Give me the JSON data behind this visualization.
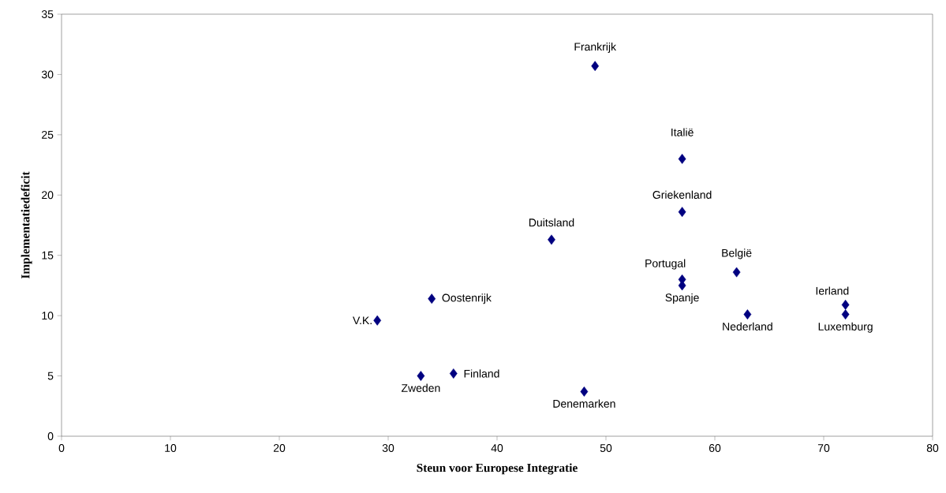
{
  "chart_data": {
    "type": "scatter",
    "xlabel": "Steun voor Europese Integratie",
    "ylabel": "Implementatiedeficit",
    "x": [
      49,
      57,
      57,
      45,
      57,
      57,
      62,
      63,
      72,
      72,
      34,
      29,
      33,
      36,
      48
    ],
    "values": [
      30.7,
      23.0,
      18.6,
      16.3,
      13.0,
      12.5,
      13.6,
      10.1,
      10.9,
      10.1,
      11.4,
      9.6,
      5.0,
      5.2,
      3.7
    ],
    "color": "#000080",
    "marker": "diamond",
    "grid": false,
    "xlim": [
      0,
      80
    ],
    "xticks": [
      0,
      10,
      20,
      30,
      40,
      50,
      60,
      70,
      80
    ],
    "ylim": [
      0,
      35
    ],
    "yticks": [
      0,
      5,
      10,
      15,
      20,
      25,
      30,
      35
    ],
    "annotations": [
      {
        "text": "Frankrijk",
        "x": 49,
        "y": 30.7
      },
      {
        "text": "Italië",
        "x": 57,
        "y": 23.0
      },
      {
        "text": "Griekenland",
        "x": 57,
        "y": 18.6
      },
      {
        "text": "Duitsland",
        "x": 45,
        "y": 16.3
      },
      {
        "text": "Portugal",
        "x": 57,
        "y": 13.0
      },
      {
        "text": "Spanje",
        "x": 57,
        "y": 12.5
      },
      {
        "text": "België",
        "x": 62,
        "y": 13.6
      },
      {
        "text": "Nederland",
        "x": 63,
        "y": 10.1
      },
      {
        "text": "Ierland",
        "x": 72,
        "y": 10.9
      },
      {
        "text": "Luxemburg",
        "x": 72,
        "y": 10.1
      },
      {
        "text": "Oostenrijk",
        "x": 34,
        "y": 11.4
      },
      {
        "text": "V.K.",
        "x": 29,
        "y": 9.6
      },
      {
        "text": "Zweden",
        "x": 33,
        "y": 5.0
      },
      {
        "text": "Finland",
        "x": 36,
        "y": 5.2
      },
      {
        "text": "Denemarken",
        "x": 48,
        "y": 3.7
      }
    ]
  }
}
